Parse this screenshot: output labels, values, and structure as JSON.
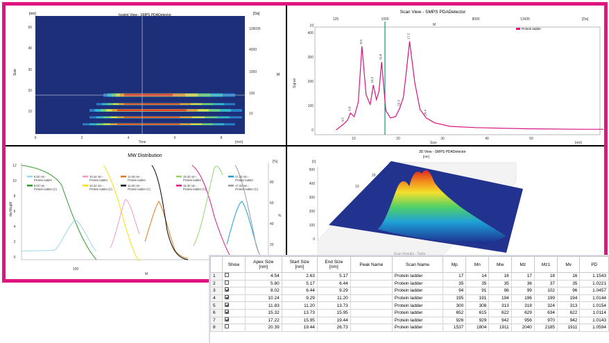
{
  "colors": {
    "frame": "#e0147f",
    "sep": "#000000",
    "heat_bg": "#1e2f7a",
    "line_pink": "#d8127e",
    "cursor_green": "#0a9d7d"
  },
  "heatmap": {
    "title": "Isoplot View - SMPS PDADetector",
    "yunit": "[nm]",
    "zunit": "[Da]",
    "xunit": "[mm]",
    "ylabel": "Size",
    "xlabel": "Time",
    "zlabel": "M",
    "yticks": [
      "50",
      "40",
      "30",
      "20",
      "10"
    ],
    "zticks": [
      "128035",
      "4000",
      "1000",
      "100",
      "10"
    ],
    "xticks": [
      "0",
      "2",
      "4",
      "6",
      "8"
    ]
  },
  "scan": {
    "title": "Scan View - SMPS PDADetector",
    "yunit": "[c]",
    "xunit": "[nm]",
    "topunit": "[Da]",
    "ylabel": "Signal",
    "xlabel": "Size",
    "toplabel": "M",
    "legend": "Protein ladder",
    "yticks": [
      "400",
      "300",
      "200",
      "100",
      "0"
    ],
    "xticks": [
      "10",
      "20",
      "30",
      "40",
      "50"
    ],
    "topticks": [
      "125",
      "1000",
      "8000",
      "13435"
    ],
    "peak_labels": [
      "4.5",
      "5.8",
      "8.0",
      "10.2",
      "11.8",
      "15.3",
      "17.2",
      "20.4"
    ]
  },
  "mw": {
    "title": "MW Distribution",
    "ylabel": "dw/dlogM",
    "y2label": "%",
    "y2unit": "[%]",
    "xlabel": "M",
    "xtick": "100",
    "yticks": [
      "12",
      "10",
      "8",
      "6",
      "4",
      "2",
      "0"
    ],
    "y2ticks": [
      "80",
      "60",
      "40",
      "20"
    ],
    "legend": [
      {
        "l1": "8.02 nm -",
        "l2": "Protein ladder",
        "color": "#9ad7ef"
      },
      {
        "l1": "8.02 nm -",
        "l2": "Protein ladder (C)",
        "color": "#2e9a2a"
      },
      {
        "l1": "10.24 nm -",
        "l2": "Protein ladder",
        "color": "#f59ac6"
      },
      {
        "l1": "10.24 nm -",
        "l2": "Protein ladder (C)",
        "color": "#f5e400"
      },
      {
        "l1": "11.83 nm -",
        "l2": "Protein ladder",
        "color": "#e07a1e"
      },
      {
        "l1": "11.83 nm -",
        "l2": "Protein ladder (C)",
        "color": "#000000"
      },
      {
        "l1": "15.32 nm -",
        "l2": "Protein ladder",
        "color": "#8fd66e"
      },
      {
        "l1": "15.32 nm -",
        "l2": "Protein ladder (C)",
        "color": "#e0168c"
      },
      {
        "l1": "17.22 nm -",
        "l2": "Protein ladder",
        "color": "#1aa0d8"
      },
      {
        "l1": "17.22 nm -",
        "l2": "Protein ladder (C)",
        "color": "#9a9a9a"
      }
    ]
  },
  "view3d": {
    "title": "3D View - SMPS PDADetector",
    "unit": "[nm]",
    "zunit": "[c]",
    "zticks": [
      "500",
      "400",
      "300",
      "200",
      "100",
      "0"
    ],
    "sticks": [
      "30",
      "20",
      "10"
    ]
  },
  "table": {
    "title": "Scan Results - Table",
    "columns": [
      "Show",
      "Apex Size\n[nm]",
      "Start Size\n[nm]",
      "End Size\n[nm]",
      "Peak Name",
      "Scan Name",
      "Mp",
      "Mn",
      "Mw",
      "Mz",
      "Mz1",
      "Mv",
      "PD"
    ],
    "rows": [
      {
        "n": "1",
        "show": false,
        "apex": "4.54",
        "start": "2.63",
        "end": "5.17",
        "peak": "",
        "scan": "Protein ladder",
        "mp": "17",
        "mn": "14",
        "mw": "16",
        "mz": "17",
        "mz1": "18",
        "mv": "16",
        "pd": "1.1543"
      },
      {
        "n": "2",
        "show": false,
        "apex": "5.80",
        "start": "5.17",
        "end": "6.44",
        "peak": "",
        "scan": "Protein ladder",
        "mp": "35",
        "mn": "35",
        "mw": "35",
        "mz": "36",
        "mz1": "37",
        "mv": "35",
        "pd": "1.0221"
      },
      {
        "n": "3",
        "show": true,
        "apex": "8.02",
        "start": "6.44",
        "end": "9.29",
        "peak": "",
        "scan": "Protein ladder",
        "mp": "94",
        "mn": "91",
        "mw": "96",
        "mz": "99",
        "mz1": "102",
        "mv": "96",
        "pd": "1.0457"
      },
      {
        "n": "4",
        "show": true,
        "apex": "10.24",
        "start": "9.29",
        "end": "11.20",
        "peak": "",
        "scan": "Protein ladder",
        "mp": "195",
        "mn": "191",
        "mw": "194",
        "mz": "196",
        "mz1": "199",
        "mv": "194",
        "pd": "1.0144"
      },
      {
        "n": "5",
        "show": true,
        "apex": "11.83",
        "start": "11.20",
        "end": "13.73",
        "peak": "",
        "scan": "Protein ladder",
        "mp": "300",
        "mn": "308",
        "mw": "313",
        "mz": "318",
        "mz1": "324",
        "mv": "313",
        "pd": "1.0154"
      },
      {
        "n": "6",
        "show": true,
        "apex": "15.32",
        "start": "13.73",
        "end": "15.95",
        "peak": "",
        "scan": "Protein ladder",
        "mp": "652",
        "mn": "615",
        "mw": "622",
        "mz": "629",
        "mz1": "634",
        "mv": "622",
        "pd": "1.0114"
      },
      {
        "n": "7",
        "show": true,
        "apex": "17.22",
        "start": "15.95",
        "end": "19.44",
        "peak": "",
        "scan": "Protein ladder",
        "mp": "926",
        "mn": "929",
        "mw": "942",
        "mz": "956",
        "mz1": "970",
        "mv": "942",
        "pd": "1.0143"
      },
      {
        "n": "8",
        "show": false,
        "apex": "20.39",
        "start": "19.44",
        "end": "26.73",
        "peak": "",
        "scan": "Protein ladder",
        "mp": "1537",
        "mn": "1804",
        "mw": "1911",
        "mz": "2040",
        "mz1": "2185",
        "mv": "1911",
        "pd": "1.0594"
      }
    ]
  },
  "chart_data": [
    {
      "type": "heatmap",
      "title": "Isoplot View - SMPS PDADetector",
      "xlabel": "Time",
      "ylabel": "Size",
      "xlim": [
        0,
        9
      ],
      "ylim": [
        0,
        55
      ]
    },
    {
      "type": "line",
      "title": "Scan View - SMPS PDADetector",
      "xlabel": "Size",
      "ylabel": "Signal",
      "ylim": [
        0,
        420
      ],
      "xlim": [
        0,
        55
      ],
      "series": [
        {
          "name": "Protein ladder",
          "x": [
            3,
            4.5,
            5.2,
            5.8,
            6.5,
            7.3,
            8.0,
            8.8,
            9.6,
            10.2,
            10.8,
            11.3,
            11.8,
            12.6,
            13.5,
            14.5,
            15.3,
            16.0,
            16.6,
            17.2,
            18.2,
            19.2,
            20.4,
            22,
            25,
            30,
            40,
            50,
            55
          ],
          "y": [
            5,
            30,
            45,
            75,
            60,
            120,
            350,
            150,
            110,
            190,
            130,
            165,
            285,
            85,
            55,
            60,
            95,
            140,
            250,
            370,
            200,
            90,
            55,
            35,
            20,
            15,
            10,
            8,
            8
          ]
        }
      ]
    },
    {
      "type": "line",
      "title": "MW Distribution",
      "xlabel": "M",
      "ylabel": "dw/dlogM"
    },
    {
      "type": "area",
      "title": "3D View - SMPS PDADetector",
      "zlim": [
        0,
        500
      ]
    }
  ]
}
